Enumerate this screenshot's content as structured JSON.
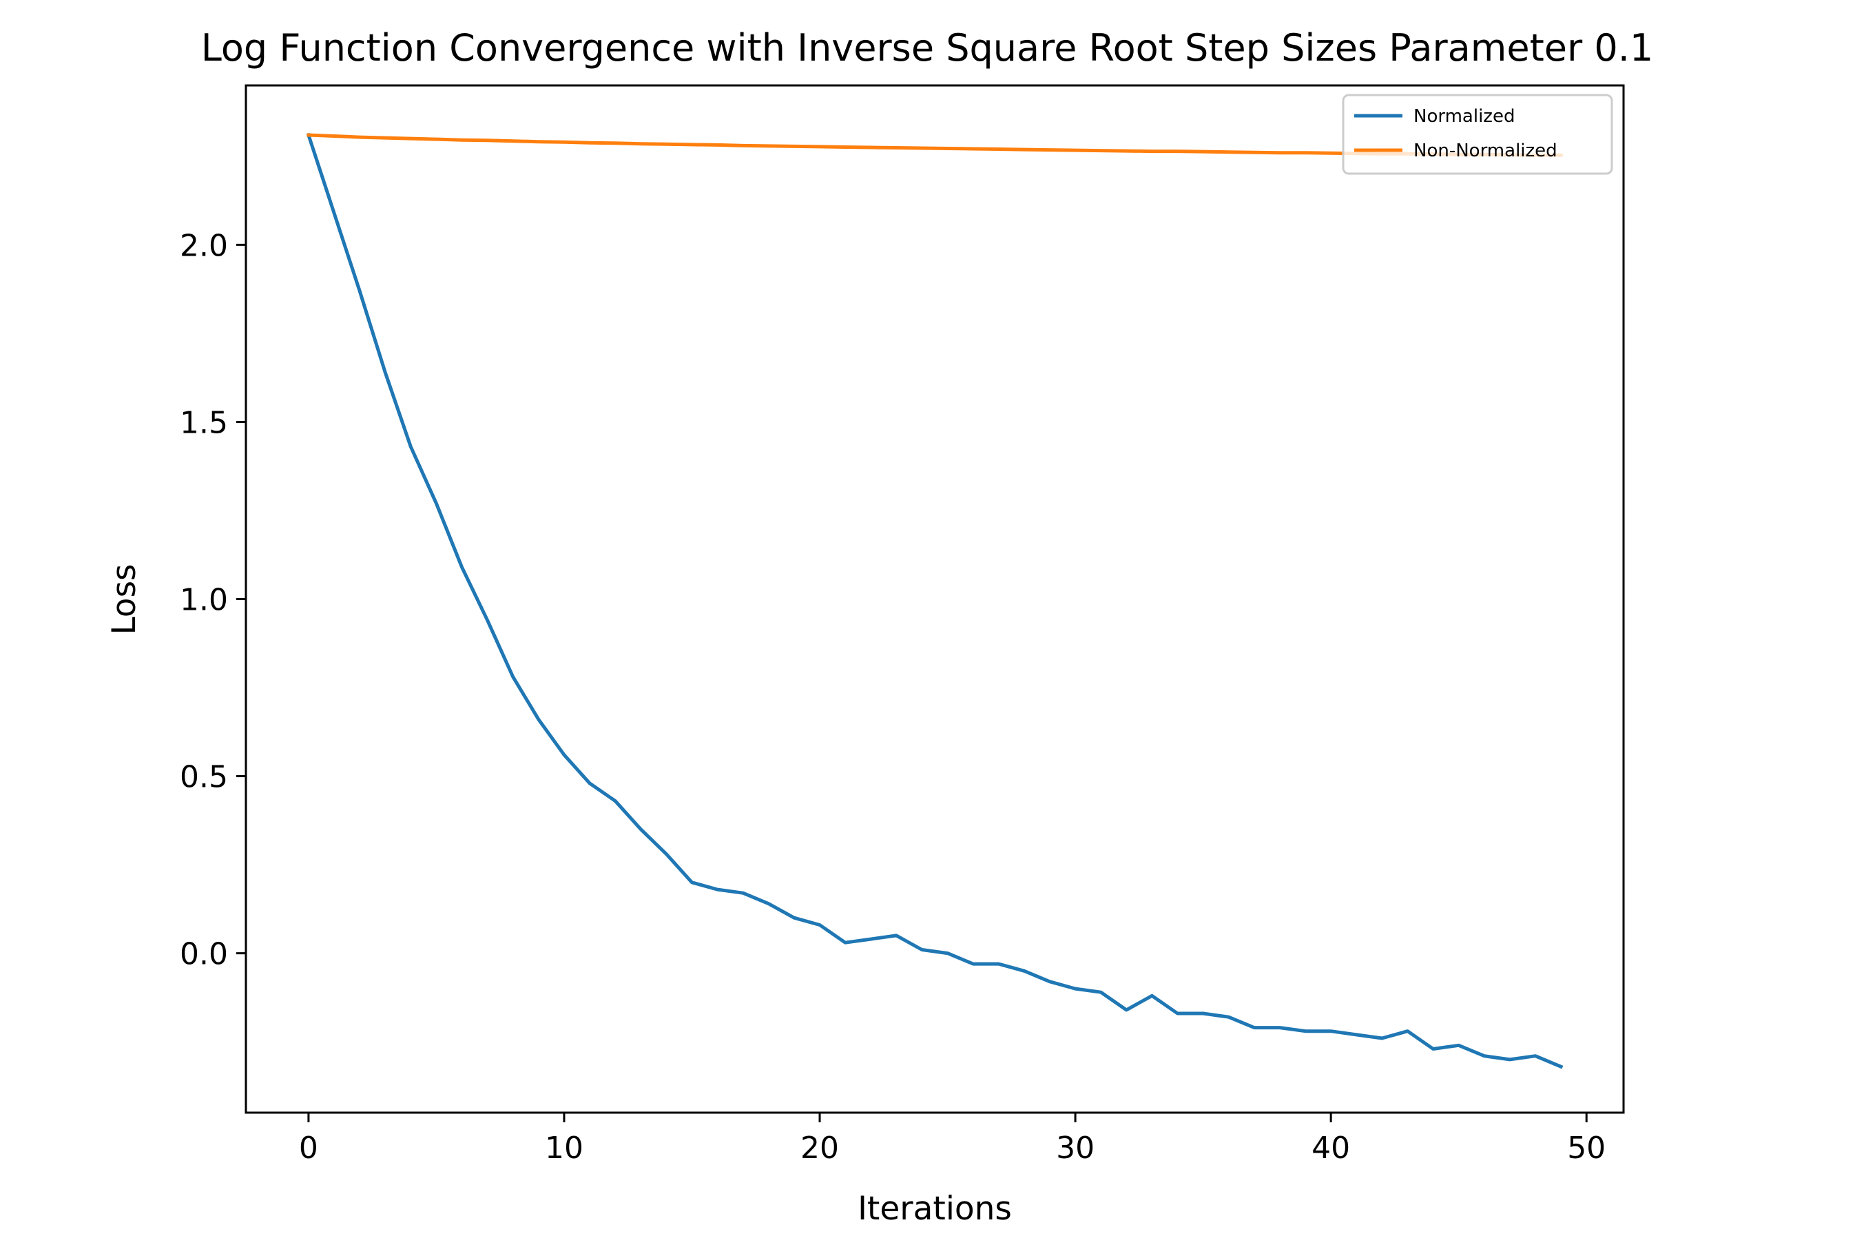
{
  "chart_data": {
    "type": "line",
    "title": "Log Function Convergence with Inverse Square Root Step Sizes Parameter 0.1",
    "xlabel": "Iterations",
    "ylabel": "Loss",
    "xlim": [
      -2.45,
      51.45
    ],
    "ylim": [
      -0.45,
      2.45
    ],
    "xticks": [
      0,
      10,
      20,
      30,
      40,
      50
    ],
    "xtick_labels": [
      "0",
      "10",
      "20",
      "30",
      "40",
      "50"
    ],
    "yticks": [
      0.0,
      0.5,
      1.0,
      1.5,
      2.0
    ],
    "ytick_labels": [
      "0.0",
      "0.5",
      "1.0",
      "1.5",
      "2.0"
    ],
    "grid": false,
    "legend_position": "upper right",
    "x": [
      0,
      1,
      2,
      3,
      4,
      5,
      6,
      7,
      8,
      9,
      10,
      11,
      12,
      13,
      14,
      15,
      16,
      17,
      18,
      19,
      20,
      21,
      22,
      23,
      24,
      25,
      26,
      27,
      28,
      29,
      30,
      31,
      32,
      33,
      34,
      35,
      36,
      37,
      38,
      39,
      40,
      41,
      42,
      43,
      44,
      45,
      46,
      47,
      48,
      49
    ],
    "series": [
      {
        "name": "Normalized",
        "color": "#1f77b4",
        "values": [
          2.31,
          2.09,
          1.87,
          1.64,
          1.43,
          1.27,
          1.09,
          0.94,
          0.78,
          0.66,
          0.56,
          0.48,
          0.43,
          0.35,
          0.28,
          0.2,
          0.18,
          0.17,
          0.14,
          0.1,
          0.08,
          0.03,
          0.04,
          0.05,
          0.01,
          0.0,
          -0.03,
          -0.03,
          -0.05,
          -0.08,
          -0.1,
          -0.11,
          -0.16,
          -0.12,
          -0.17,
          -0.17,
          -0.18,
          -0.21,
          -0.21,
          -0.22,
          -0.22,
          -0.23,
          -0.24,
          -0.22,
          -0.27,
          -0.26,
          -0.29,
          -0.3,
          -0.29,
          -0.32
        ]
      },
      {
        "name": "Non-Normalized",
        "color": "#ff7f0e",
        "values": [
          2.31,
          2.307,
          2.304,
          2.302,
          2.3,
          2.298,
          2.296,
          2.295,
          2.293,
          2.291,
          2.29,
          2.288,
          2.287,
          2.285,
          2.284,
          2.283,
          2.282,
          2.28,
          2.279,
          2.278,
          2.277,
          2.276,
          2.275,
          2.274,
          2.273,
          2.272,
          2.271,
          2.27,
          2.269,
          2.268,
          2.267,
          2.266,
          2.265,
          2.264,
          2.264,
          2.263,
          2.262,
          2.261,
          2.26,
          2.26,
          2.259,
          2.258,
          2.257,
          2.257,
          2.256,
          2.255,
          2.255,
          2.254,
          2.253,
          2.253
        ]
      }
    ]
  }
}
